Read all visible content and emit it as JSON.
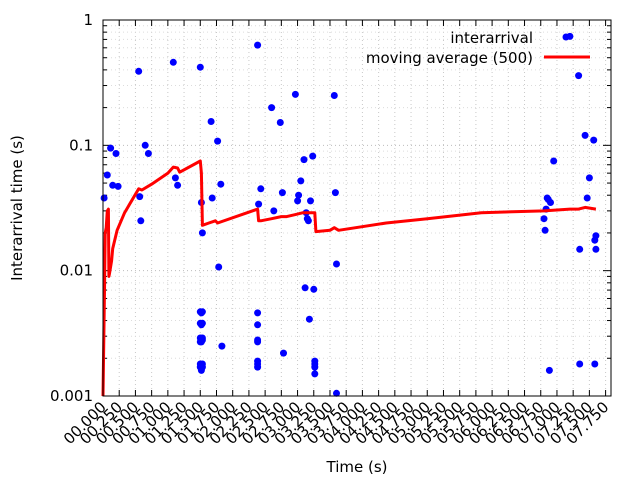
{
  "chart_data": {
    "type": "scatter",
    "xlabel": "Time (s)",
    "ylabel": "Interarrival time (s)",
    "xlim": [
      0,
      470
    ],
    "ylim": [
      0.001,
      1
    ],
    "y_scale": "log",
    "grid": true,
    "legend": "top-right",
    "x_tick_labels": [
      "00.000",
      "00.250",
      "00.500",
      "00.750",
      "01.000",
      "01.250",
      "01.500",
      "01.750",
      "02.000",
      "02.250",
      "02.500",
      "02.750",
      "03.000",
      "03.250",
      "03.500",
      "03.750",
      "04.000",
      "04.250",
      "04.500",
      "04.750",
      "05.000",
      "05.250",
      "05.500",
      "05.750",
      "06.000",
      "06.250",
      "06.500",
      "06.750",
      "07.000",
      "07.250",
      "07.500",
      "07.750"
    ],
    "x_tick_values": [
      0,
      15,
      30,
      45,
      60,
      75,
      90,
      105,
      120,
      135,
      150,
      165,
      180,
      195,
      210,
      225,
      240,
      255,
      270,
      285,
      300,
      315,
      330,
      345,
      360,
      375,
      390,
      405,
      420,
      435,
      450,
      465
    ],
    "y_ticks": [
      {
        "value": 1,
        "label": "1"
      },
      {
        "value": 0.1,
        "label": "0.1"
      },
      {
        "value": 0.01,
        "label": "0.01"
      },
      {
        "value": 0.001,
        "label": "0.001"
      }
    ],
    "series": [
      {
        "name": "interarrival",
        "style": "points",
        "color": "#0000ff",
        "points": [
          [
            1,
            0.038
          ],
          [
            4,
            0.058
          ],
          [
            7,
            0.095
          ],
          [
            9,
            0.048
          ],
          [
            12,
            0.086
          ],
          [
            14,
            0.047
          ],
          [
            33,
            0.39
          ],
          [
            34,
            0.039
          ],
          [
            35,
            0.025
          ],
          [
            39,
            0.1
          ],
          [
            42,
            0.086
          ],
          [
            65,
            0.46
          ],
          [
            67,
            0.055
          ],
          [
            69,
            0.048
          ],
          [
            90,
            0.42
          ],
          [
            91,
            0.035
          ],
          [
            92,
            0.02
          ],
          [
            90,
            0.0047
          ],
          [
            91,
            0.0046
          ],
          [
            92,
            0.0047
          ],
          [
            90,
            0.0038
          ],
          [
            91,
            0.0037
          ],
          [
            92,
            0.0038
          ],
          [
            90,
            0.0029
          ],
          [
            91,
            0.0028
          ],
          [
            92,
            0.0029
          ],
          [
            90,
            0.0027
          ],
          [
            91,
            0.0027
          ],
          [
            92,
            0.0028
          ],
          [
            90,
            0.0018
          ],
          [
            91,
            0.0017
          ],
          [
            92,
            0.0018
          ],
          [
            90,
            0.0017
          ],
          [
            91,
            0.0016
          ],
          [
            92,
            0.0017
          ],
          [
            100,
            0.155
          ],
          [
            101,
            0.038
          ],
          [
            106,
            0.108
          ],
          [
            107,
            0.0107
          ],
          [
            109,
            0.049
          ],
          [
            110,
            0.0025
          ],
          [
            143,
            0.63
          ],
          [
            144,
            0.034
          ],
          [
            146,
            0.045
          ],
          [
            143,
            0.0046
          ],
          [
            143,
            0.0037
          ],
          [
            143,
            0.0028
          ],
          [
            143,
            0.0027
          ],
          [
            143,
            0.0019
          ],
          [
            143,
            0.0018
          ],
          [
            143,
            0.0017
          ],
          [
            156,
            0.2
          ],
          [
            158,
            0.03
          ],
          [
            164,
            0.152
          ],
          [
            166,
            0.042
          ],
          [
            167,
            0.0022
          ],
          [
            178,
            0.255
          ],
          [
            180,
            0.036
          ],
          [
            181,
            0.04
          ],
          [
            183,
            0.052
          ],
          [
            186,
            0.077
          ],
          [
            187,
            0.0073
          ],
          [
            188,
            0.029
          ],
          [
            189,
            0.026
          ],
          [
            190,
            0.025
          ],
          [
            191,
            0.0041
          ],
          [
            192,
            0.036
          ],
          [
            194,
            0.082
          ],
          [
            195,
            0.0071
          ],
          [
            196,
            0.0019
          ],
          [
            196,
            0.0018
          ],
          [
            196,
            0.0017
          ],
          [
            196,
            0.0015
          ],
          [
            214,
            0.25
          ],
          [
            215,
            0.042
          ],
          [
            216,
            0.0113
          ],
          [
            216,
            0.00105
          ],
          [
            408,
            0.026
          ],
          [
            409,
            0.021
          ],
          [
            410,
            0.031
          ],
          [
            411,
            0.038
          ],
          [
            412,
            0.037
          ],
          [
            414,
            0.035
          ],
          [
            413,
            0.0016
          ],
          [
            417,
            0.075
          ],
          [
            432,
            0.74
          ],
          [
            440,
            0.36
          ],
          [
            441,
            0.0148
          ],
          [
            441,
            0.0018
          ],
          [
            446,
            0.12
          ],
          [
            448,
            0.038
          ],
          [
            450,
            0.055
          ],
          [
            454,
            0.11
          ],
          [
            455,
            0.0175
          ],
          [
            456,
            0.019
          ],
          [
            456,
            0.0148
          ],
          [
            455,
            0.0018
          ]
        ]
      },
      {
        "name": "moving average (500)",
        "style": "line",
        "color": "#ff0000",
        "points": [
          [
            0,
            0.001
          ],
          [
            1.5,
            0.008
          ],
          [
            2,
            0.02
          ],
          [
            3,
            0.022
          ],
          [
            4,
            0.03
          ],
          [
            5,
            0.031
          ],
          [
            5.5,
            0.009
          ],
          [
            6,
            0.0095
          ],
          [
            8,
            0.012
          ],
          [
            9,
            0.015
          ],
          [
            13,
            0.021
          ],
          [
            20,
            0.029
          ],
          [
            33,
            0.045
          ],
          [
            36,
            0.044
          ],
          [
            45,
            0.049
          ],
          [
            60,
            0.06
          ],
          [
            65,
            0.067
          ],
          [
            69,
            0.066
          ],
          [
            71,
            0.061
          ],
          [
            90,
            0.075
          ],
          [
            91,
            0.06
          ],
          [
            92,
            0.023
          ],
          [
            98,
            0.024
          ],
          [
            104,
            0.025
          ],
          [
            106,
            0.024
          ],
          [
            143,
            0.031
          ],
          [
            144,
            0.025
          ],
          [
            146,
            0.025
          ],
          [
            156,
            0.026
          ],
          [
            165,
            0.027
          ],
          [
            170,
            0.027
          ],
          [
            178,
            0.028
          ],
          [
            185,
            0.029
          ],
          [
            196,
            0.029
          ],
          [
            197,
            0.0205
          ],
          [
            210,
            0.021
          ],
          [
            214,
            0.022
          ],
          [
            218,
            0.021
          ],
          [
            262,
            0.024
          ],
          [
            300,
            0.026
          ],
          [
            350,
            0.029
          ],
          [
            408,
            0.03
          ],
          [
            432,
            0.031
          ],
          [
            440,
            0.031
          ],
          [
            446,
            0.032
          ],
          [
            456,
            0.031
          ]
        ]
      }
    ]
  }
}
